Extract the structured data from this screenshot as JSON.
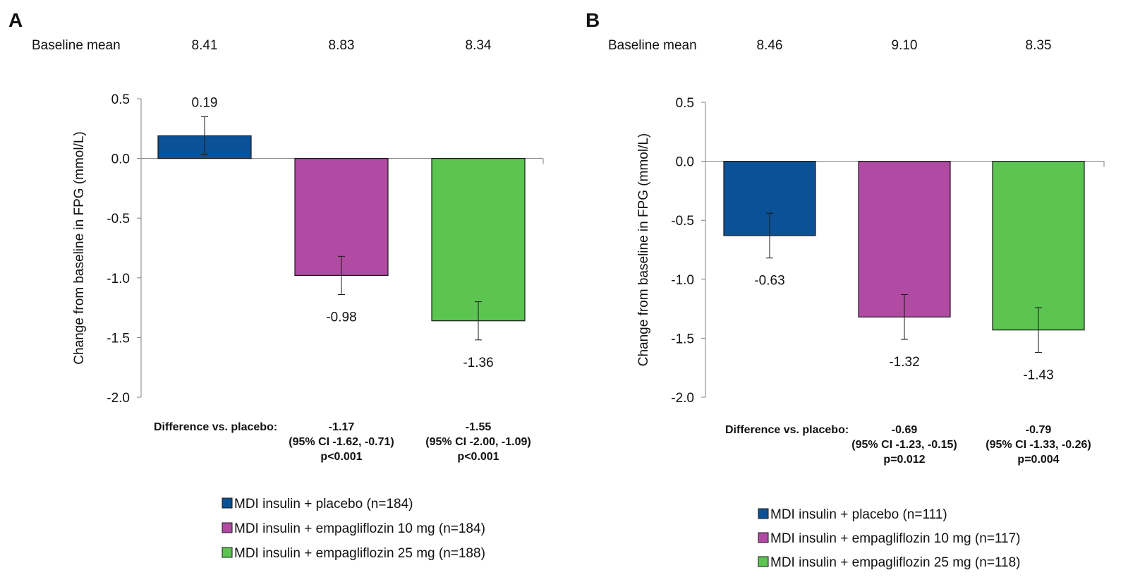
{
  "chart_data": [
    {
      "panel": "A",
      "type": "bar",
      "baseline_label": "Baseline mean",
      "baseline_values": [
        "8.41",
        "8.83",
        "8.34"
      ],
      "ylabel": "Change  from baseline in FPG (mmol/L)",
      "ylim": [
        -2.0,
        0.5
      ],
      "yticks": [
        "0.5",
        "0.0",
        "-0.5",
        "-1.0",
        "-1.5",
        "-2.0"
      ],
      "ytick_values": [
        0.5,
        0.0,
        -0.5,
        -1.0,
        -1.5,
        -2.0
      ],
      "values": [
        0.19,
        -0.98,
        -1.36
      ],
      "value_labels": [
        "0.19",
        "-0.98",
        "-1.36"
      ],
      "error_low": [
        0.03,
        -1.14,
        -1.52
      ],
      "error_high": [
        0.35,
        -0.82,
        -1.2
      ],
      "difference_label": "Difference vs. placebo:",
      "differences": [
        {
          "value": "",
          "ci": "",
          "p": ""
        },
        {
          "value": "-1.17",
          "ci": "(95% CI -1.62, -0.71)",
          "p": "p<0.001"
        },
        {
          "value": "-1.55",
          "ci": "(95% CI -2.00, -1.09)",
          "p": "p<0.001"
        }
      ],
      "legend": [
        "MDI insulin + placebo (n=184)",
        "MDI insulin + empagliflozin 10 mg (n=184)",
        "MDI insulin + empagliflozin 25 mg (n=188)"
      ],
      "colors": [
        "#0a5197",
        "#b04aa3",
        "#5cc451"
      ],
      "grid": false
    },
    {
      "panel": "B",
      "type": "bar",
      "baseline_label": "Baseline mean",
      "baseline_values": [
        "8.46",
        "9.10",
        "8.35"
      ],
      "ylabel": "Change  from baseline in FPG (mmol/L)",
      "ylim": [
        -2.0,
        0.5
      ],
      "yticks": [
        "0.5",
        "0.0",
        "-0.5",
        "-1.0",
        "-1.5",
        "-2.0"
      ],
      "ytick_values": [
        0.5,
        0.0,
        -0.5,
        -1.0,
        -1.5,
        -2.0
      ],
      "values": [
        -0.63,
        -1.32,
        -1.43
      ],
      "value_labels": [
        "-0.63",
        "-1.32",
        "-1.43"
      ],
      "error_low": [
        -0.82,
        -1.51,
        -1.62
      ],
      "error_high": [
        -0.44,
        -1.13,
        -1.24
      ],
      "difference_label": "Difference vs. placebo:",
      "differences": [
        {
          "value": "",
          "ci": "",
          "p": ""
        },
        {
          "value": "-0.69",
          "ci": "(95% CI -1.23, -0.15)",
          "p": "p=0.012"
        },
        {
          "value": "-0.79",
          "ci": "(95% CI -1.33, -0.26)",
          "p": "p=0.004"
        }
      ],
      "legend": [
        "MDI insulin + placebo (n=111)",
        "MDI insulin + empagliflozin 10 mg (n=117)",
        "MDI insulin + empagliflozin 25 mg (n=118)"
      ],
      "colors": [
        "#0a5197",
        "#b04aa3",
        "#5cc451"
      ],
      "grid": false
    }
  ]
}
